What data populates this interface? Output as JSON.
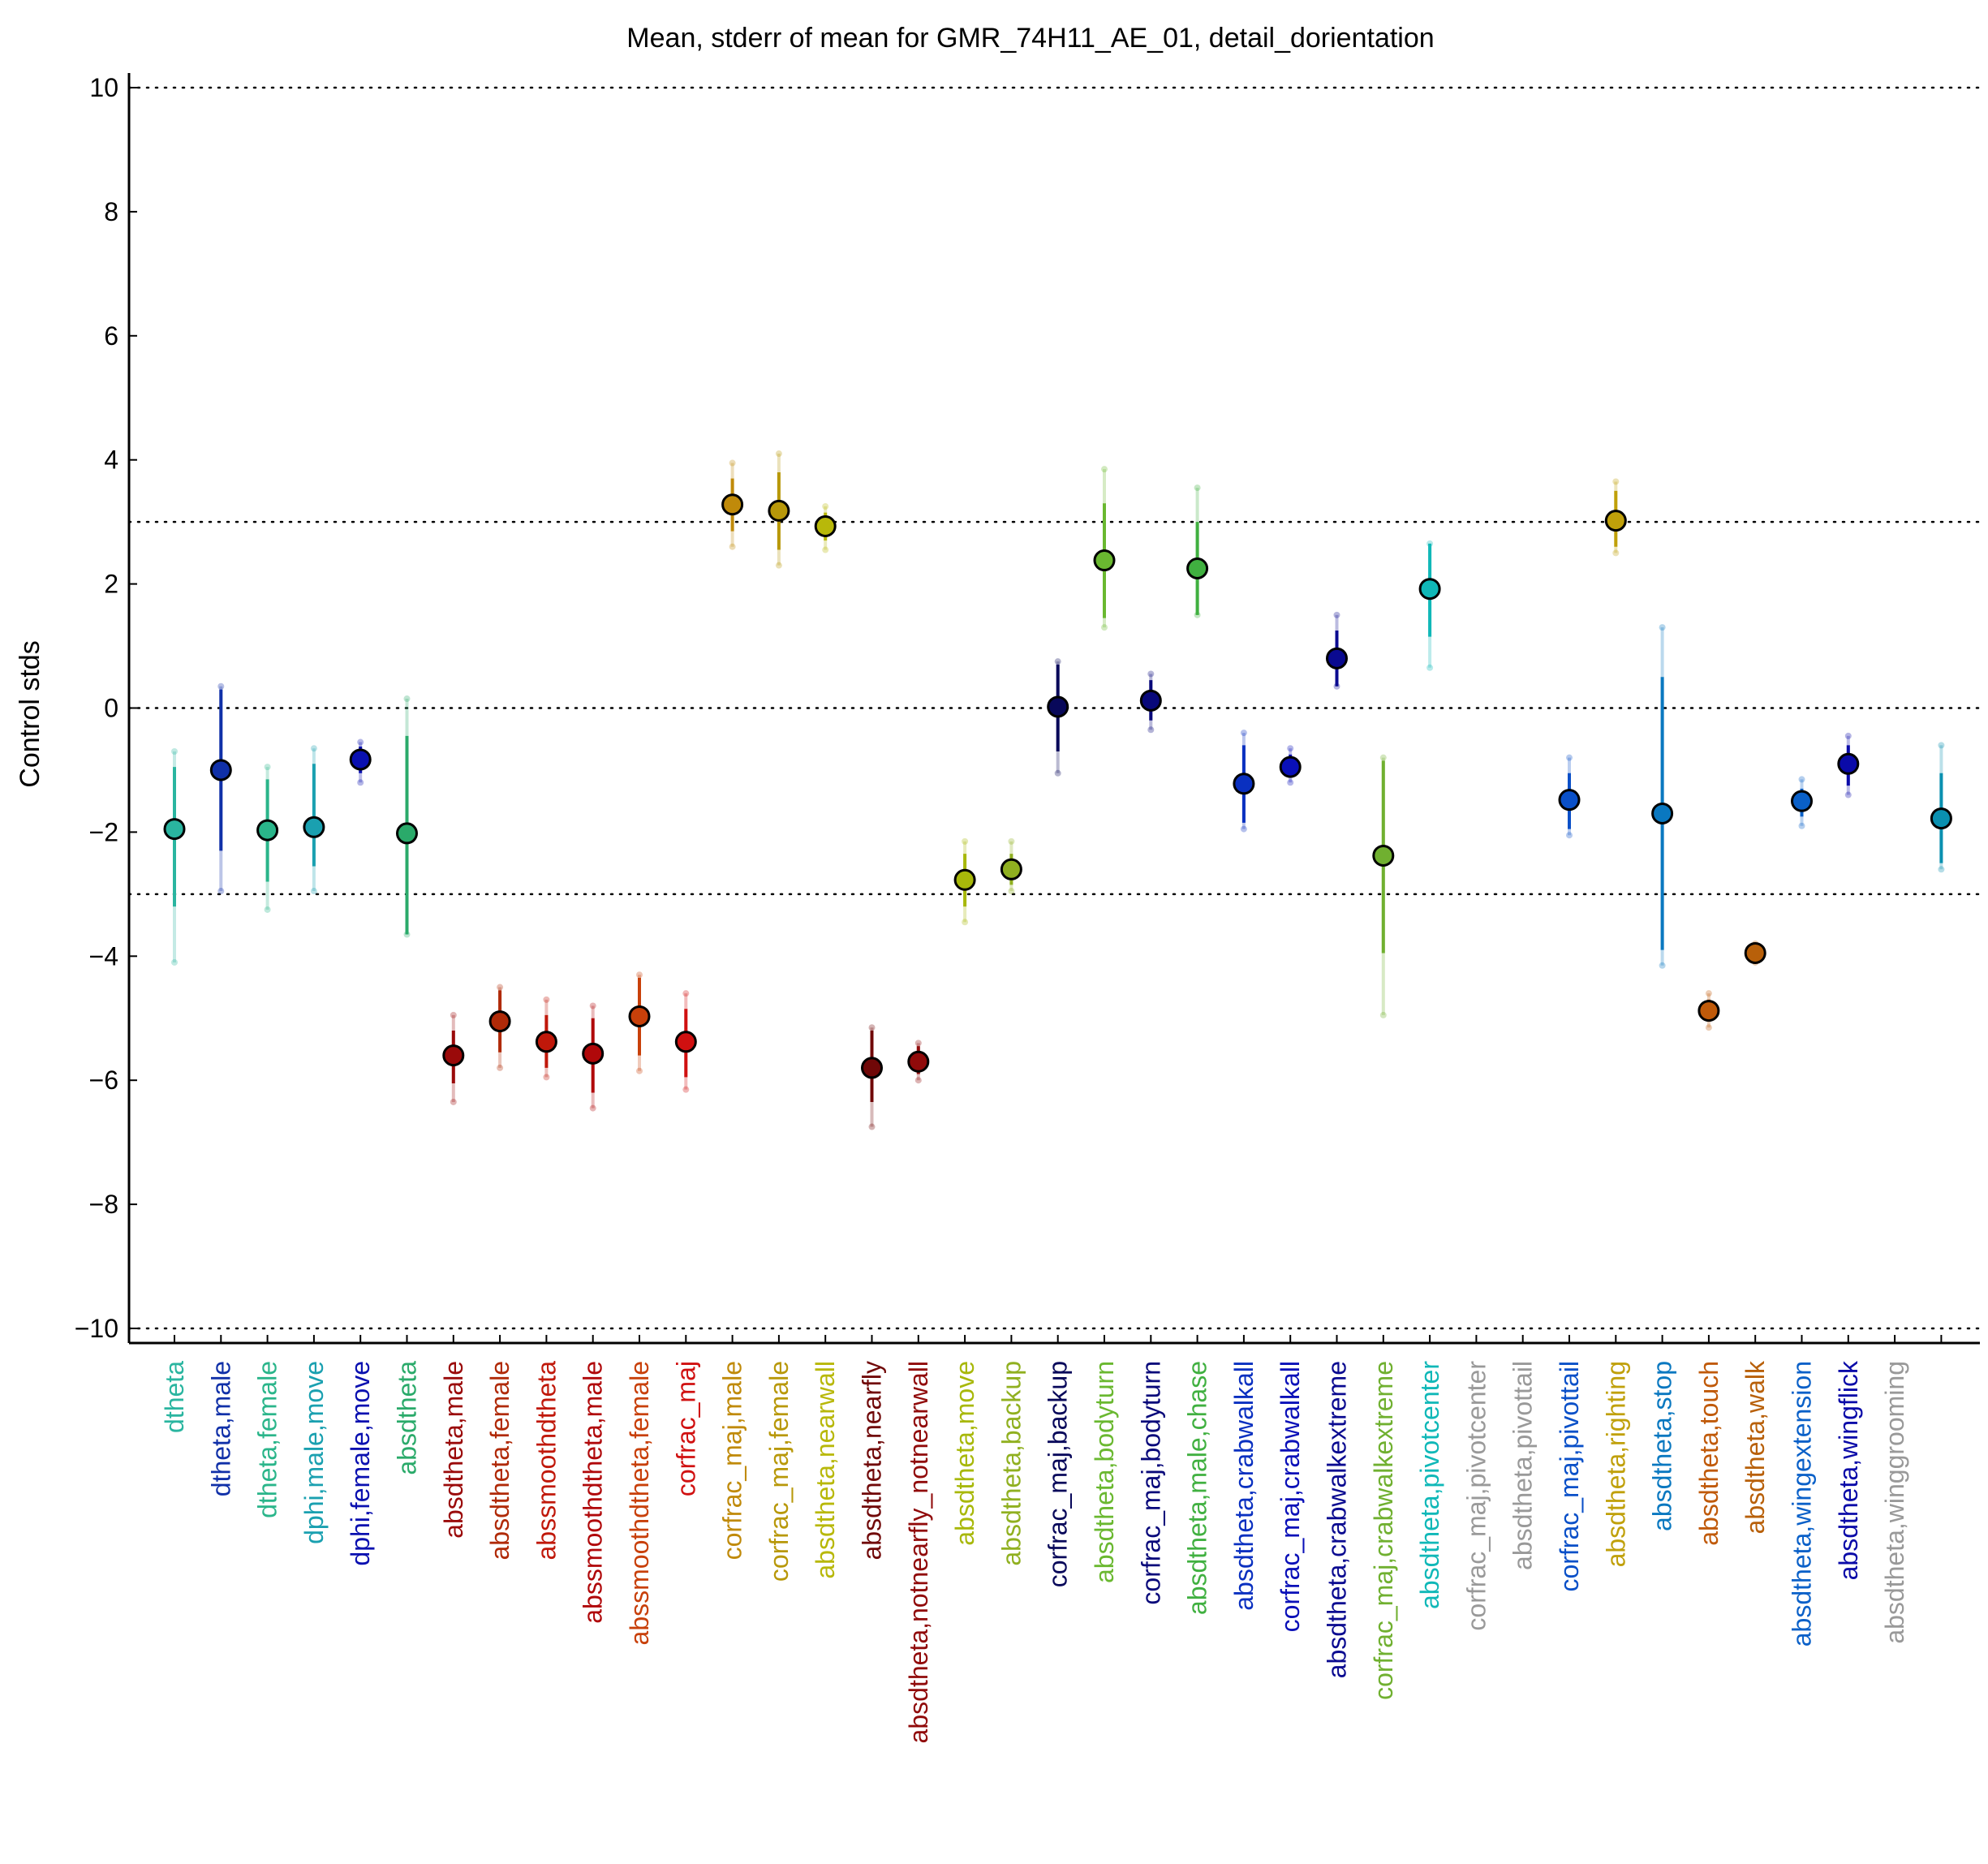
{
  "chart_data": {
    "type": "scatter",
    "title": "Mean, stderr of mean for GMR_74H11_AE_01, detail_dorientation",
    "xlabel": "",
    "ylabel": "Control stds",
    "ylim": [
      -10.2,
      10.2
    ],
    "yticks": [
      10,
      8,
      6,
      4,
      2,
      0,
      -2,
      -4,
      -6,
      -8,
      -10
    ],
    "ytick_labels": [
      "10",
      "8",
      "6",
      "4",
      "2",
      "0",
      "−2",
      "−4",
      "−6",
      "−8",
      "−10"
    ],
    "reference_lines": [
      10,
      3,
      0,
      -3,
      -10
    ],
    "grid": false,
    "categories": [
      {
        "label": "dtheta",
        "mean": -1.95,
        "se_low": -3.2,
        "se_high": -0.95,
        "range_low": -4.1,
        "range_high": -0.7,
        "color": "#2ab5a0"
      },
      {
        "label": "dtheta,male",
        "mean": -1.0,
        "se_low": -2.3,
        "se_high": 0.3,
        "range_low": -2.95,
        "range_high": 0.35,
        "color": "#1030a8"
      },
      {
        "label": "dtheta,female",
        "mean": -1.97,
        "se_low": -2.8,
        "se_high": -1.15,
        "range_low": -3.25,
        "range_high": -0.95,
        "color": "#2ab58a"
      },
      {
        "label": "dphi,male,move",
        "mean": -1.92,
        "se_low": -2.55,
        "se_high": -0.9,
        "range_low": -2.95,
        "range_high": -0.65,
        "color": "#1aa0b0"
      },
      {
        "label": "dphi,female,move",
        "mean": -0.83,
        "se_low": -1.05,
        "se_high": -0.62,
        "range_low": -1.2,
        "range_high": -0.55,
        "color": "#0a10b0"
      },
      {
        "label": "absdtheta",
        "mean": -2.02,
        "se_low": -3.65,
        "se_high": -0.45,
        "range_low": -3.65,
        "range_high": 0.15,
        "color": "#2aaa6a"
      },
      {
        "label": "absdtheta,male",
        "mean": -5.6,
        "se_low": -6.05,
        "se_high": -5.2,
        "range_low": -6.35,
        "range_high": -4.95,
        "color": "#9a0a0a"
      },
      {
        "label": "absdtheta,female",
        "mean": -5.05,
        "se_low": -5.55,
        "se_high": -4.55,
        "range_low": -5.8,
        "range_high": -4.5,
        "color": "#b02a08"
      },
      {
        "label": "abssmoothdtheta",
        "mean": -5.38,
        "se_low": -5.8,
        "se_high": -4.95,
        "range_low": -5.95,
        "range_high": -4.7,
        "color": "#c0180a"
      },
      {
        "label": "abssmoothdtheta,male",
        "mean": -5.57,
        "se_low": -6.2,
        "se_high": -5.0,
        "range_low": -6.45,
        "range_high": -4.8,
        "color": "#b0080a"
      },
      {
        "label": "abssmoothdtheta,female",
        "mean": -4.97,
        "se_low": -5.6,
        "se_high": -4.35,
        "range_low": -5.85,
        "range_high": -4.3,
        "color": "#c8400a"
      },
      {
        "label": "corfrac_maj",
        "mean": -5.38,
        "se_low": -5.95,
        "se_high": -4.85,
        "range_low": -6.15,
        "range_high": -4.6,
        "color": "#d01010"
      },
      {
        "label": "corfrac_maj,male",
        "mean": 3.28,
        "se_low": 2.85,
        "se_high": 3.7,
        "range_low": 2.6,
        "range_high": 3.95,
        "color": "#c08a0a"
      },
      {
        "label": "corfrac_maj,female",
        "mean": 3.18,
        "se_low": 2.55,
        "se_high": 3.8,
        "range_low": 2.3,
        "range_high": 4.1,
        "color": "#b8980a"
      },
      {
        "label": "absdtheta,nearwall",
        "mean": 2.93,
        "se_low": 2.7,
        "se_high": 3.15,
        "range_low": 2.55,
        "range_high": 3.25,
        "color": "#b8b80a"
      },
      {
        "label": "absdtheta,nearfly",
        "mean": -5.8,
        "se_low": -6.35,
        "se_high": -5.2,
        "range_low": -6.75,
        "range_high": -5.15,
        "color": "#700808"
      },
      {
        "label": "absdtheta,notnearfly_notnearwall",
        "mean": -5.7,
        "se_low": -5.9,
        "se_high": -5.45,
        "range_low": -6.0,
        "range_high": -5.4,
        "color": "#900a0a"
      },
      {
        "label": "absdtheta,move",
        "mean": -2.77,
        "se_low": -3.2,
        "se_high": -2.35,
        "range_low": -3.45,
        "range_high": -2.15,
        "color": "#a8b80a"
      },
      {
        "label": "absdtheta,backup",
        "mean": -2.6,
        "se_low": -2.85,
        "se_high": -2.35,
        "range_low": -2.95,
        "range_high": -2.15,
        "color": "#90b020"
      },
      {
        "label": "corfrac_maj,backup",
        "mean": 0.02,
        "se_low": -0.7,
        "se_high": 0.7,
        "range_low": -1.05,
        "range_high": 0.75,
        "color": "#08085a"
      },
      {
        "label": "absdtheta,bodyturn",
        "mean": 2.38,
        "se_low": 1.45,
        "se_high": 3.3,
        "range_low": 1.3,
        "range_high": 3.85,
        "color": "#6ab830"
      },
      {
        "label": "corfrac_maj,bodyturn",
        "mean": 0.12,
        "se_low": -0.2,
        "se_high": 0.45,
        "range_low": -0.35,
        "range_high": 0.55,
        "color": "#08087a"
      },
      {
        "label": "absdtheta,male,chase",
        "mean": 2.25,
        "se_low": 1.5,
        "se_high": 3.0,
        "range_low": 1.5,
        "range_high": 3.55,
        "color": "#40b040"
      },
      {
        "label": "absdtheta,crabwalkall",
        "mean": -1.22,
        "se_low": -1.85,
        "se_high": -0.6,
        "range_low": -1.95,
        "range_high": -0.4,
        "color": "#0a30c0"
      },
      {
        "label": "corfrac_maj,crabwalkall",
        "mean": -0.95,
        "se_low": -1.1,
        "se_high": -0.75,
        "range_low": -1.2,
        "range_high": -0.65,
        "color": "#0a10b8"
      },
      {
        "label": "absdtheta,crabwalkextreme",
        "mean": 0.8,
        "se_low": 0.35,
        "se_high": 1.25,
        "range_low": 0.35,
        "range_high": 1.5,
        "color": "#0a0a90"
      },
      {
        "label": "corfrac_maj,crabwalkextreme",
        "mean": -2.38,
        "se_low": -3.95,
        "se_high": -0.85,
        "range_low": -4.95,
        "range_high": -0.8,
        "color": "#70b030"
      },
      {
        "label": "absdtheta,pivotcenter",
        "mean": 1.92,
        "se_low": 1.15,
        "se_high": 2.65,
        "range_low": 0.65,
        "range_high": 2.65,
        "color": "#10b8b8"
      },
      {
        "label": "corfrac_maj,pivotcenter",
        "mean": null,
        "se_low": null,
        "se_high": null,
        "range_low": null,
        "range_high": null,
        "color": "#999999"
      },
      {
        "label": "absdtheta,pivottail",
        "mean": null,
        "se_low": null,
        "se_high": null,
        "range_low": null,
        "range_high": null,
        "color": "#999999"
      },
      {
        "label": "corfrac_maj,pivottail",
        "mean": -1.48,
        "se_low": -1.95,
        "se_high": -1.05,
        "range_low": -2.05,
        "range_high": -0.8,
        "color": "#0a50c8"
      },
      {
        "label": "absdtheta,righting",
        "mean": 3.02,
        "se_low": 2.6,
        "se_high": 3.5,
        "range_low": 2.5,
        "range_high": 3.65,
        "color": "#c0a00a"
      },
      {
        "label": "absdtheta,stop",
        "mean": -1.7,
        "se_low": -3.9,
        "se_high": 0.5,
        "range_low": -4.15,
        "range_high": 1.3,
        "color": "#0a78c0"
      },
      {
        "label": "absdtheta,touch",
        "mean": -4.88,
        "se_low": -5.05,
        "se_high": -4.7,
        "range_low": -5.15,
        "range_high": -4.6,
        "color": "#c05a0a"
      },
      {
        "label": "absdtheta,walk",
        "mean": -3.95,
        "se_low": -4.05,
        "se_high": -3.85,
        "range_low": -4.1,
        "range_high": -3.8,
        "color": "#b8600a"
      },
      {
        "label": "absdtheta,wingextension",
        "mean": -1.5,
        "se_low": -1.75,
        "se_high": -1.3,
        "range_low": -1.9,
        "range_high": -1.15,
        "color": "#0a60c8"
      },
      {
        "label": "absdtheta,wingflick",
        "mean": -0.9,
        "se_low": -1.25,
        "se_high": -0.6,
        "range_low": -1.4,
        "range_high": -0.45,
        "color": "#0a0aa8"
      },
      {
        "label": "absdtheta,winggrooming",
        "mean": null,
        "se_low": null,
        "se_high": null,
        "range_low": null,
        "range_high": null,
        "color": "#999999"
      },
      {
        "label": "",
        "mean": -1.78,
        "se_low": -2.5,
        "se_high": -1.05,
        "range_low": -2.6,
        "range_high": -0.6,
        "color": "#0a90b0"
      }
    ]
  }
}
